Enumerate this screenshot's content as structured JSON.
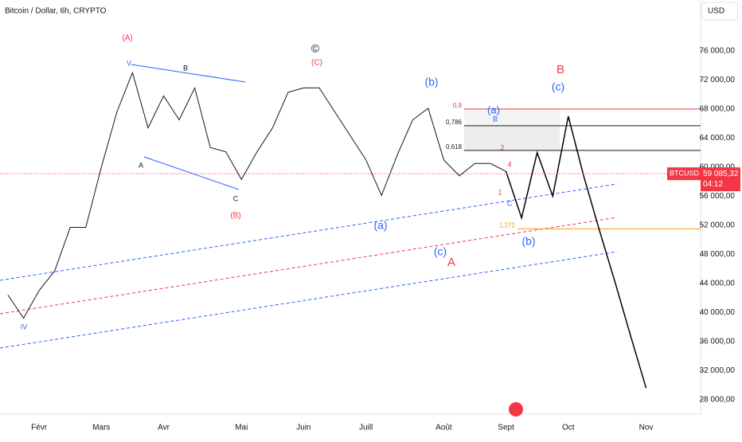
{
  "chart_data": {
    "type": "line",
    "title": "Bitcoin / Dollar, 6h, CRYPTO",
    "currency": "USD",
    "symbol": "BTCUSD",
    "last_price": {
      "value": 59085.32,
      "label": "59 085,32"
    },
    "countdown": "04:12",
    "categories": [
      null,
      null,
      "Févr",
      null,
      null,
      null,
      "Mars",
      null,
      null,
      null,
      "Avr",
      null,
      null,
      null,
      null,
      "Mai",
      null,
      null,
      null,
      "Juin",
      null,
      null,
      null,
      "Juill",
      null,
      null,
      null,
      null,
      "Août",
      null,
      null,
      null,
      "Sept",
      null,
      null,
      null,
      "Oct",
      null,
      null,
      null,
      null,
      "Nov"
    ],
    "series": [
      {
        "color": "#131722",
        "values": [
          42400,
          39200,
          43000,
          45700,
          51700,
          51700,
          60000,
          67600,
          73000,
          65400,
          69800,
          66500,
          70900,
          62700,
          62100,
          58300,
          62100,
          65400,
          70300,
          70900,
          70900,
          67600,
          64300,
          61000,
          56100,
          61600,
          66500,
          68100,
          61000,
          58800,
          60500,
          60500,
          59400,
          null,
          null,
          null,
          null,
          null,
          null,
          null,
          null,
          null
        ]
      },
      {
        "color": "#000000",
        "values": [
          null,
          null,
          null,
          null,
          null,
          null,
          null,
          null,
          null,
          null,
          null,
          null,
          null,
          null,
          null,
          null,
          null,
          null,
          null,
          null,
          null,
          null,
          null,
          null,
          null,
          null,
          null,
          null,
          null,
          null,
          null,
          null,
          59400,
          53000,
          62000,
          56000,
          67000,
          58700,
          51300,
          44200,
          36800,
          29600
        ]
      }
    ],
    "ylim": [
      26000,
      83000
    ],
    "yticks": [
      {
        "value": 28000,
        "label": "28 000,00"
      },
      {
        "value": 32000,
        "label": "32 000,00"
      },
      {
        "value": 36000,
        "label": "36 000,00"
      },
      {
        "value": 40000,
        "label": "40 000,00"
      },
      {
        "value": 44000,
        "label": "44 000,00"
      },
      {
        "value": 48000,
        "label": "48 000,00"
      },
      {
        "value": 52000,
        "label": "52 000,00"
      },
      {
        "value": 56000,
        "label": "56 000,00"
      },
      {
        "value": 60000,
        "label": "60 000,00"
      },
      {
        "value": 64000,
        "label": "64 000,00"
      },
      {
        "value": 68000,
        "label": "68 000,00"
      },
      {
        "value": 72000,
        "label": "72 000,00"
      },
      {
        "value": 76000,
        "label": "76 000,00"
      }
    ],
    "fib_levels": [
      {
        "ratio": {
          "value": 0.9,
          "label": "0,9"
        },
        "price": 68000,
        "color": "#f23645"
      },
      {
        "ratio": {
          "value": 0.786,
          "label": "0,786"
        },
        "price": 65700,
        "color": "#131722"
      },
      {
        "ratio": {
          "value": 0.618,
          "label": "0,618"
        },
        "price": 62300,
        "color": "#131722"
      },
      {
        "ratio": {
          "value": 1.272,
          "label": "1,272"
        },
        "price": 51500,
        "color": "#ff9800"
      }
    ],
    "annotations": [
      "(A)",
      "V",
      "B",
      "A",
      "C",
      "(B)",
      "©",
      "(C)",
      "(a)",
      "(b)",
      "(c)",
      "A",
      "IV",
      "B",
      "(c)",
      "(b)",
      "(a)",
      "B",
      "C",
      "1",
      "2",
      "4"
    ]
  }
}
